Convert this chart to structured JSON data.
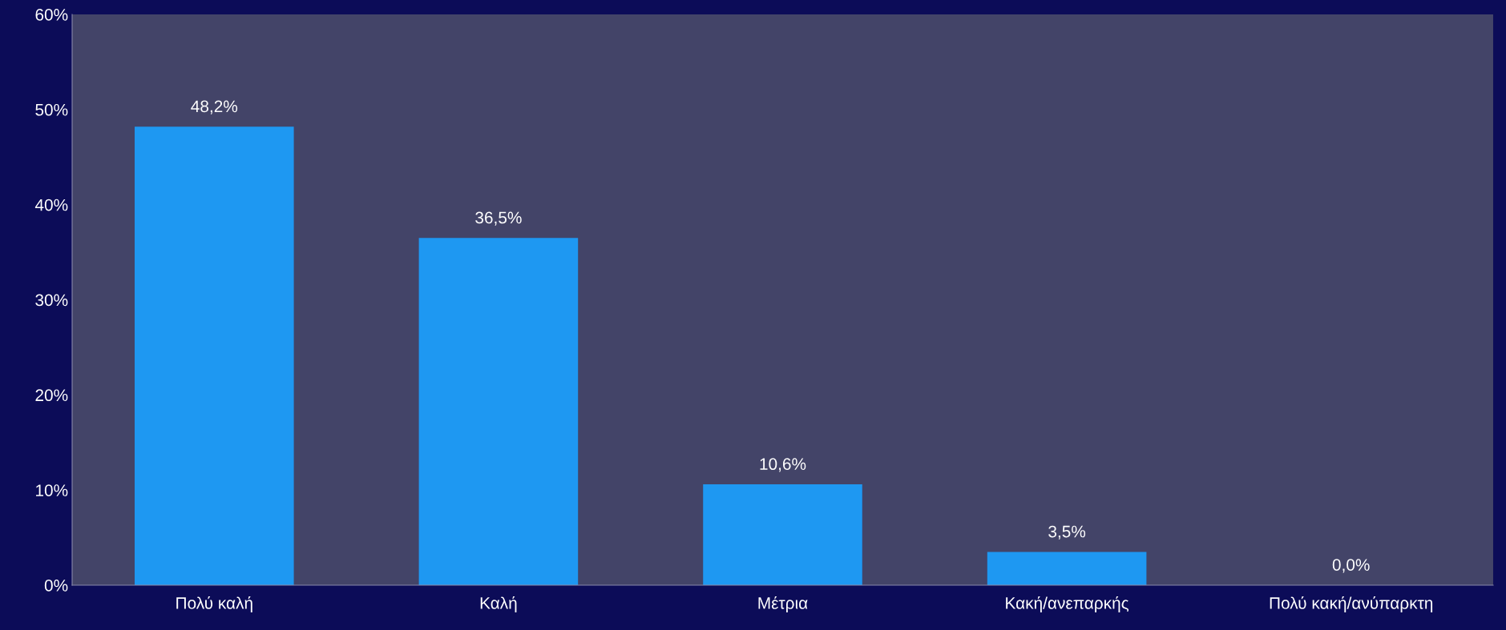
{
  "chart_data": {
    "type": "bar",
    "categories": [
      "Πολύ καλή",
      "Καλή",
      "Μέτρια",
      "Κακή/ανεπαρκής",
      "Πολύ κακή/ανύπαρκτη"
    ],
    "values": [
      48.2,
      36.5,
      10.6,
      3.5,
      0.0
    ],
    "value_labels": [
      "48,2%",
      "36,5%",
      "10,6%",
      "3,5%",
      "0,0%"
    ],
    "color": "#1e98f2",
    "ylim": [
      0,
      60
    ],
    "yticks": [
      {
        "value": 0,
        "label": "0%"
      },
      {
        "value": 10,
        "label": "10%"
      },
      {
        "value": 20,
        "label": "20%"
      },
      {
        "value": 30,
        "label": "30%"
      },
      {
        "value": 40,
        "label": "40%"
      },
      {
        "value": 50,
        "label": "50%"
      },
      {
        "value": 60,
        "label": "60%"
      }
    ],
    "grid": false
  }
}
